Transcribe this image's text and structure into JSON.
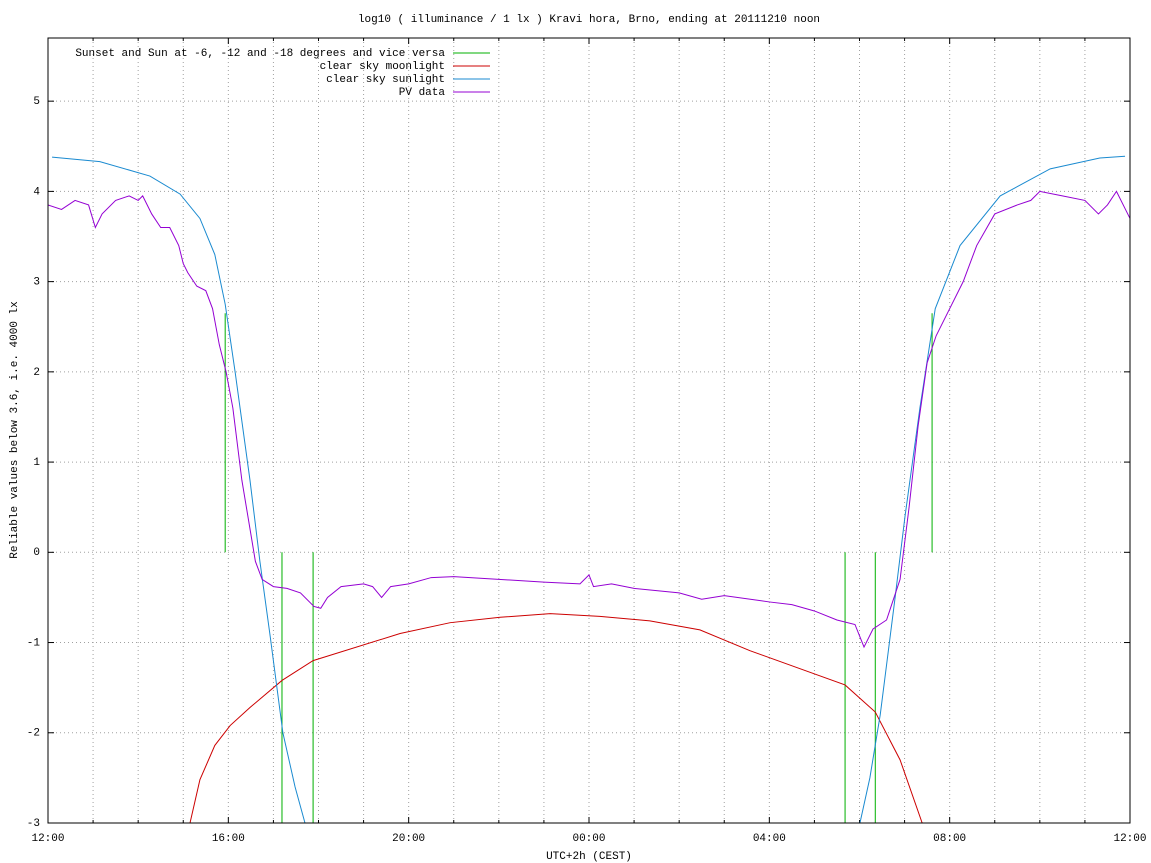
{
  "chart_data": {
    "type": "line",
    "title": "log10 ( illuminance / 1 lx ) Kravi hora, Brno, ending at 20111210 noon",
    "xlabel": "UTC+2h (CEST)",
    "ylabel": "Reliable values below 3.6, i.e. 4000 lx",
    "xlim": [
      0,
      24
    ],
    "ylim": [
      -3,
      5.7
    ],
    "xticks": [
      {
        "value": 0,
        "label": "12:00"
      },
      {
        "value": 4,
        "label": "16:00"
      },
      {
        "value": 8,
        "label": "20:00"
      },
      {
        "value": 12,
        "label": "00:00"
      },
      {
        "value": 16,
        "label": "04:00"
      },
      {
        "value": 20,
        "label": "08:00"
      },
      {
        "value": 24,
        "label": "12:00"
      }
    ],
    "xminorticks": [
      1,
      2,
      3,
      5,
      6,
      7,
      9,
      10,
      11,
      13,
      14,
      15,
      17,
      18,
      19,
      21,
      22,
      23
    ],
    "yticks": [
      -3,
      -2,
      -1,
      0,
      1,
      2,
      3,
      4,
      5
    ],
    "grid": true,
    "legend": "top left",
    "series": [
      {
        "name": "Sunset and Sun at -6, -12 and -18 degrees and vice versa",
        "color": "#00b000",
        "x": [
          3.93,
          3.93,
          null,
          5.19,
          5.19,
          null,
          5.88,
          5.88,
          null,
          17.68,
          17.68,
          null,
          18.35,
          18.35,
          null,
          19.61,
          19.61
        ],
        "values": [
          0,
          2.65,
          null,
          -3,
          0,
          null,
          -3,
          0,
          null,
          -3,
          0,
          null,
          -3,
          0,
          null,
          0,
          2.65
        ]
      },
      {
        "name": "clear sky moonlight",
        "color": "#cc0000",
        "x": [
          3.15,
          3.37,
          3.7,
          4.04,
          4.48,
          5.19,
          5.88,
          7.81,
          8.92,
          10.03,
          11.14,
          12.24,
          13.35,
          14.46,
          15.57,
          16.68,
          17.68,
          18.35,
          18.9,
          19.39
        ],
        "values": [
          -3,
          -2.52,
          -2.14,
          -1.92,
          -1.72,
          -1.42,
          -1.2,
          -0.9,
          -0.78,
          -0.72,
          -0.68,
          -0.71,
          -0.76,
          -0.86,
          -1.09,
          -1.29,
          -1.47,
          -1.77,
          -2.3,
          -3
        ]
      },
      {
        "name": "clear sky sunlight",
        "color": "#1a8ad0",
        "x": [
          0.09,
          1.15,
          2.26,
          2.93,
          3.37,
          3.7,
          3.93,
          4.15,
          4.48,
          4.7,
          4.92,
          5.21,
          5.48,
          5.7,
          null,
          18.01,
          18.23,
          18.46,
          18.79,
          19.01,
          19.34,
          19.68,
          20.23,
          21.12,
          22.23,
          23.33,
          23.89
        ],
        "values": [
          4.38,
          4.33,
          4.17,
          3.97,
          3.7,
          3.3,
          2.75,
          2.0,
          0.8,
          -0.1,
          -0.9,
          -2.0,
          -2.6,
          -3.0,
          null,
          -3,
          -2.5,
          -1.8,
          -0.5,
          0.4,
          1.6,
          2.7,
          3.4,
          3.95,
          4.25,
          4.37,
          4.39
        ]
      },
      {
        "name": "PV data",
        "color": "#9400d3",
        "x": [
          0,
          0.3,
          0.6,
          0.9,
          1.05,
          1.2,
          1.5,
          1.8,
          2.0,
          2.1,
          2.3,
          2.5,
          2.7,
          2.9,
          3.0,
          3.1,
          3.3,
          3.5,
          3.65,
          3.8,
          3.95,
          4.1,
          4.3,
          4.5,
          4.6,
          4.75,
          5.0,
          5.3,
          5.6,
          5.9,
          6.05,
          6.2,
          6.5,
          7.0,
          7.2,
          7.4,
          7.6,
          8.0,
          8.5,
          9,
          10,
          11,
          11.8,
          12.0,
          12.1,
          12.5,
          13,
          14,
          14.5,
          15,
          16,
          16.5,
          17,
          17.5,
          17.9,
          18.1,
          18.3,
          18.6,
          18.9,
          19.1,
          19.3,
          19.5,
          19.7,
          20,
          20.3,
          20.6,
          21,
          21.5,
          21.8,
          22,
          22.5,
          23,
          23.3,
          23.5,
          23.7,
          23.9,
          24
        ],
        "values": [
          3.85,
          3.8,
          3.9,
          3.85,
          3.6,
          3.75,
          3.9,
          3.95,
          3.9,
          3.95,
          3.75,
          3.6,
          3.6,
          3.4,
          3.2,
          3.1,
          2.95,
          2.9,
          2.7,
          2.3,
          2.0,
          1.6,
          0.8,
          0.2,
          -0.1,
          -0.3,
          -0.38,
          -0.4,
          -0.45,
          -0.6,
          -0.62,
          -0.5,
          -0.38,
          -0.35,
          -0.38,
          -0.5,
          -0.38,
          -0.35,
          -0.28,
          -0.27,
          -0.3,
          -0.33,
          -0.35,
          -0.25,
          -0.38,
          -0.35,
          -0.4,
          -0.45,
          -0.52,
          -0.48,
          -0.55,
          -0.58,
          -0.65,
          -0.75,
          -0.8,
          -1.05,
          -0.85,
          -0.75,
          -0.3,
          0.5,
          1.4,
          2.1,
          2.4,
          2.7,
          3.0,
          3.4,
          3.75,
          3.85,
          3.9,
          4.0,
          3.95,
          3.9,
          3.75,
          3.85,
          4.0,
          3.8,
          3.7
        ]
      }
    ]
  }
}
